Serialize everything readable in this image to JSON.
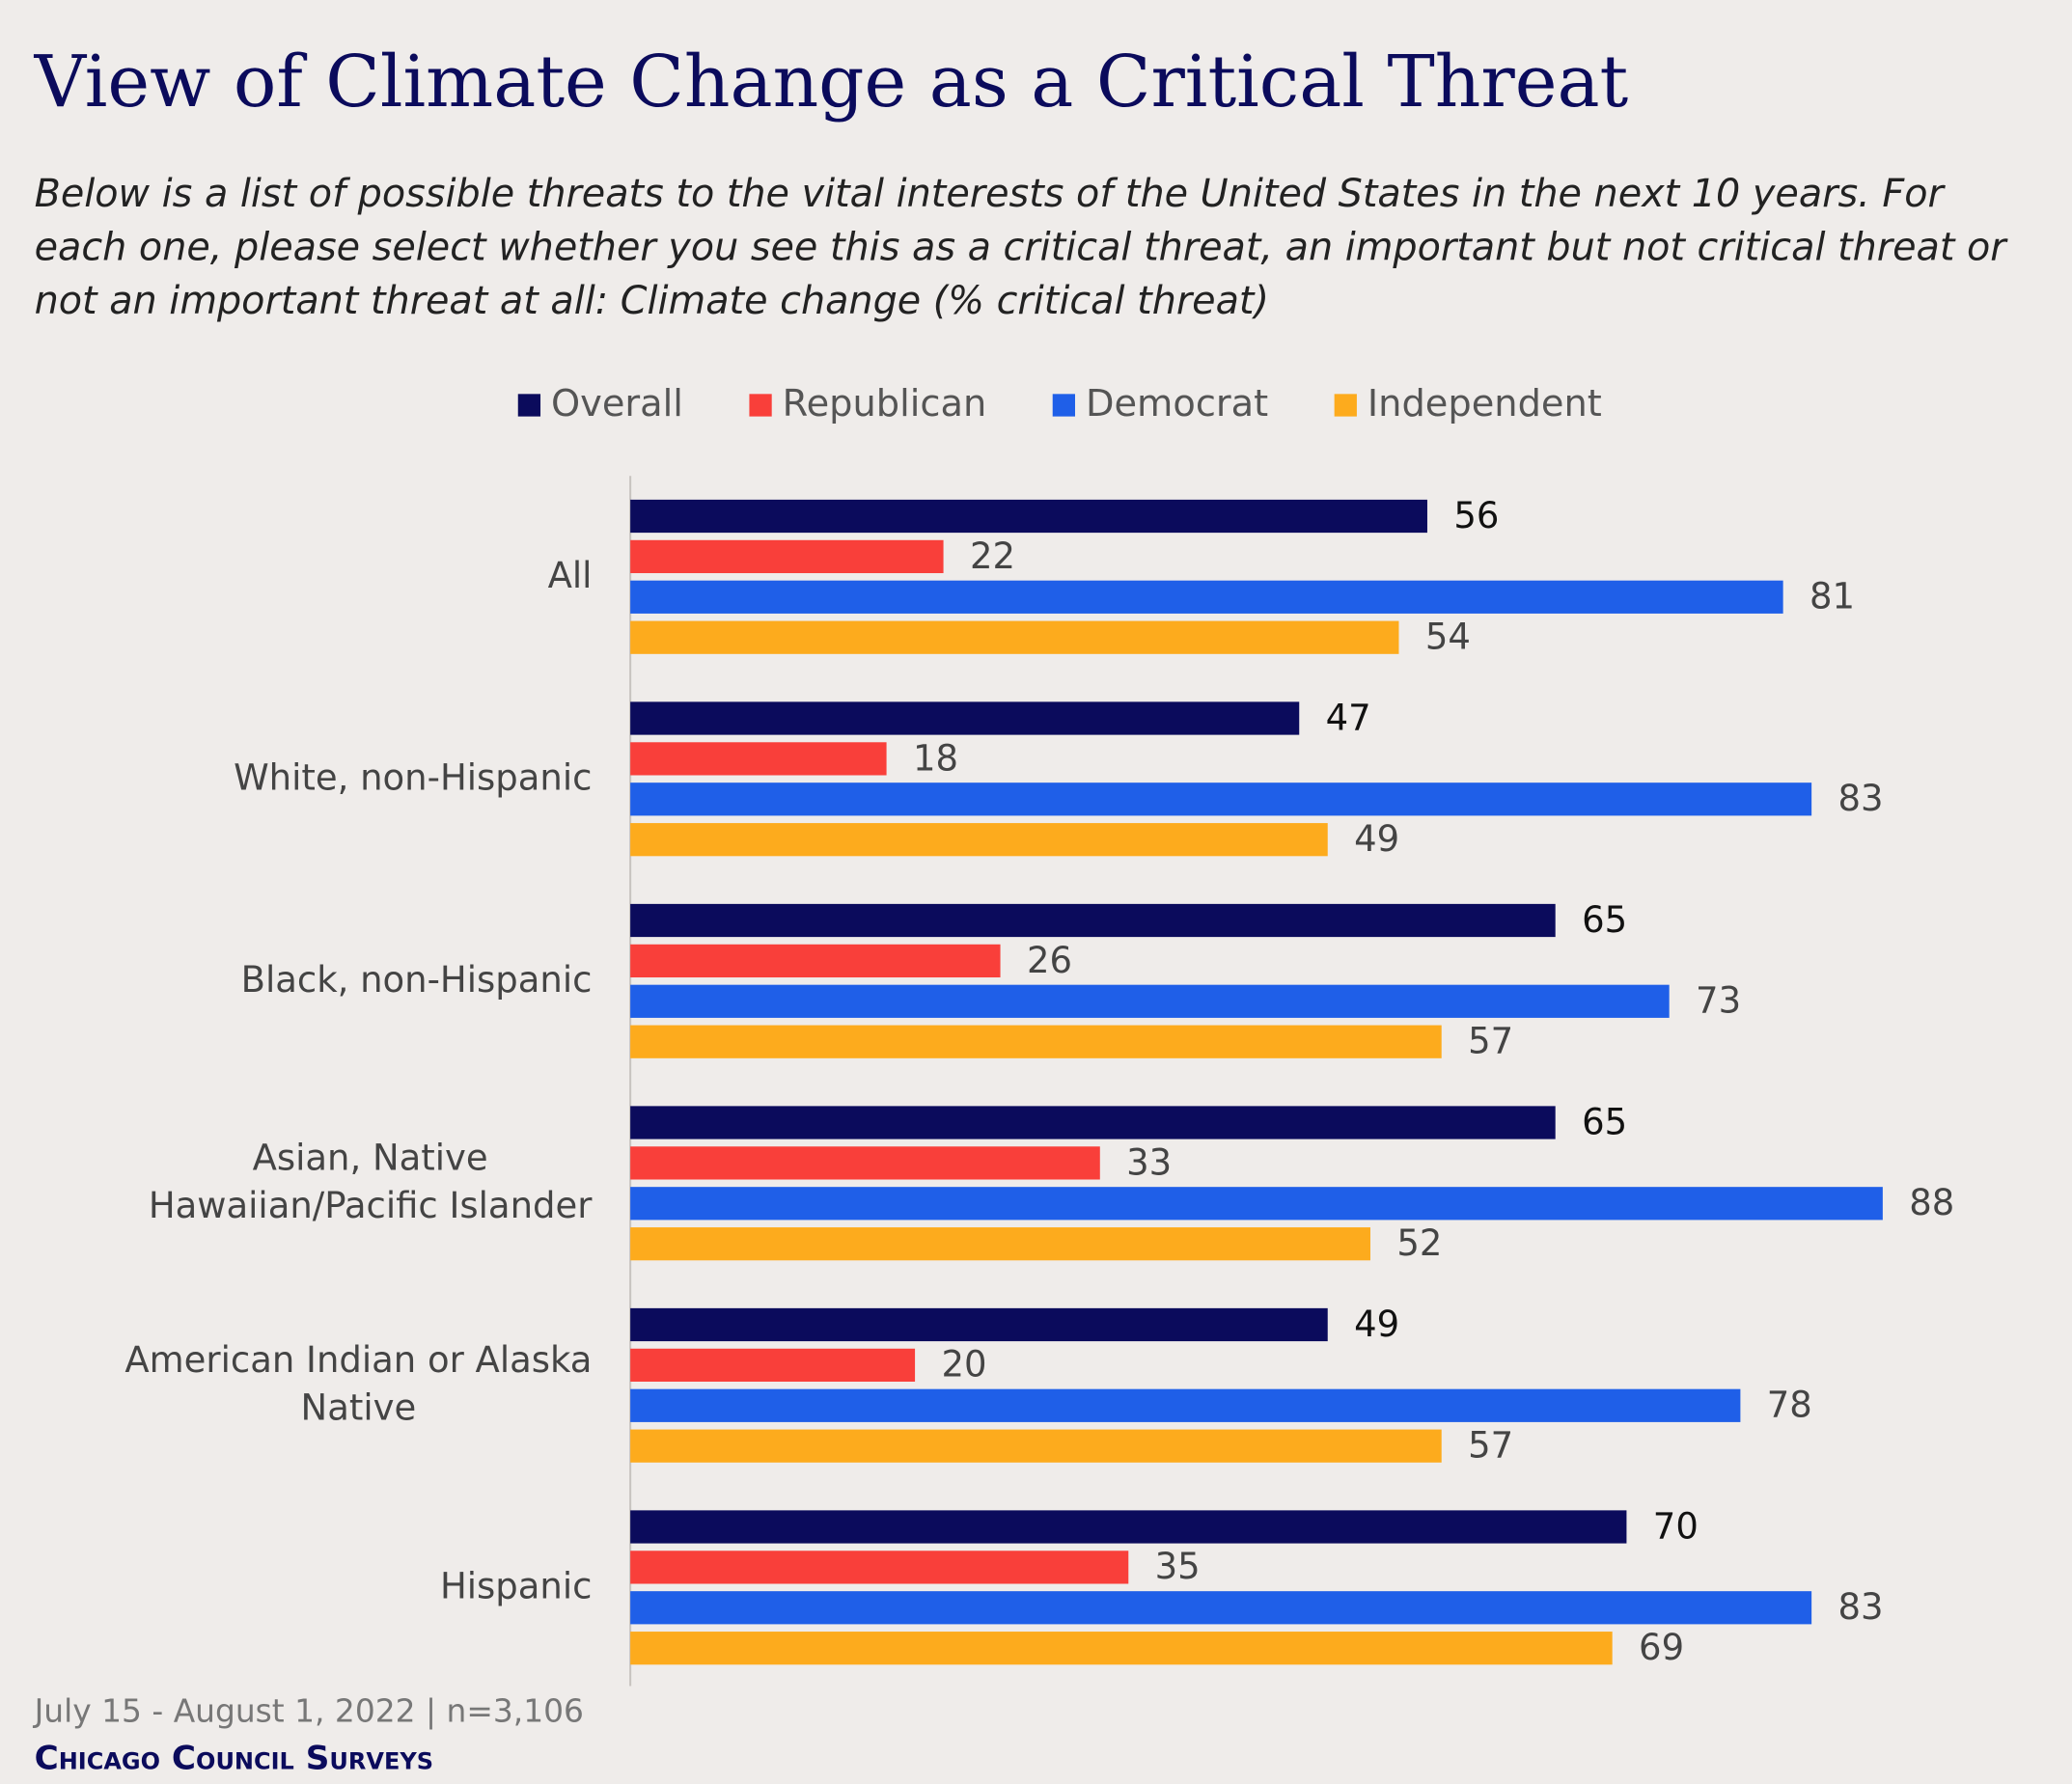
{
  "chart_data": {
    "type": "bar",
    "orientation": "horizontal",
    "title": "View of Climate Change as a Critical Threat",
    "subtitle": "Below is a list of possible threats to the vital interests of the United States in the next 10 years. For each one, please select whether you see this as a critical threat, an important but not critical threat or not an important threat at all: Climate change (% critical threat)",
    "categories": [
      "All",
      "White, non-Hispanic",
      "Black, non-Hispanic",
      "Asian, Native Hawaiian/Pacific Islander",
      "American Indian or Alaska Native",
      "Hispanic"
    ],
    "series": [
      {
        "name": "Overall",
        "color": "#0b0b5c",
        "values": [
          56,
          47,
          65,
          65,
          49,
          70
        ]
      },
      {
        "name": "Republican",
        "color": "#f93f3a",
        "values": [
          22,
          18,
          26,
          33,
          20,
          35
        ]
      },
      {
        "name": "Democrat",
        "color": "#1f5fe8",
        "values": [
          81,
          83,
          73,
          88,
          78,
          83
        ]
      },
      {
        "name": "Independent",
        "color": "#fdab1d",
        "values": [
          54,
          49,
          57,
          52,
          57,
          69
        ]
      }
    ],
    "xlim": [
      0,
      100
    ],
    "legend": "top",
    "note": "July 15 - August 1, 2022 | n=3,106",
    "source": "Chicago Council Surveys"
  }
}
